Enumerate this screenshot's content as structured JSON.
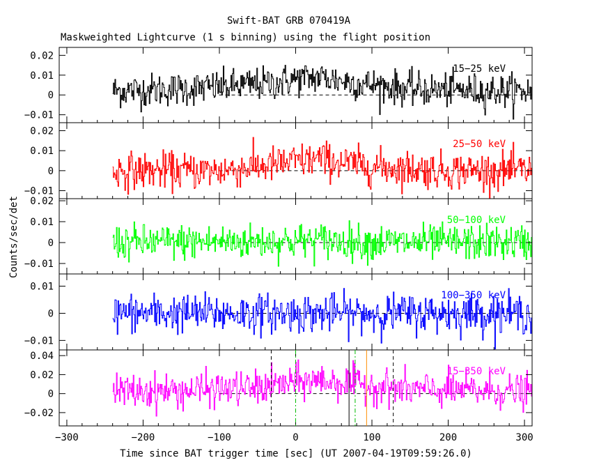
{
  "chart_data": {
    "type": "line",
    "title": "Swift-BAT GRB 070419A",
    "subtitle": "Maskweighted Lightcurve (1 s binning) using the flight position",
    "xlabel": "Time since BAT trigger time [sec] (UT 2007-04-19T09:59:26.0)",
    "ylabel": "Counts/sec/det",
    "xlim": [
      -310,
      310
    ],
    "xticks": [
      "−300",
      "−200",
      "−100",
      "0",
      "100",
      "200",
      "300"
    ],
    "data_start": -240,
    "data_end": 310,
    "panels": [
      {
        "band": "15−25 keV",
        "color": "#000000",
        "ylim": [
          -0.014,
          0.024
        ],
        "yticks": [
          {
            "v": 0.02,
            "t": "0.02"
          },
          {
            "v": 0.01,
            "t": "0.01"
          },
          {
            "v": 0,
            "t": "0"
          },
          {
            "v": -0.01,
            "t": "−0.01"
          }
        ],
        "noise": 0.0042,
        "series": [
          {
            "x": -240,
            "y": 0.002
          },
          {
            "x": -150,
            "y": 0.003
          },
          {
            "x": -100,
            "y": 0.004
          },
          {
            "x": -30,
            "y": 0.006
          },
          {
            "x": 0,
            "y": 0.008
          },
          {
            "x": 30,
            "y": 0.009
          },
          {
            "x": 80,
            "y": 0.006
          },
          {
            "x": 150,
            "y": 0.003
          },
          {
            "x": 250,
            "y": 0.002
          },
          {
            "x": 310,
            "y": 0.002
          }
        ]
      },
      {
        "band": "25−50 keV",
        "color": "#ff0000",
        "ylim": [
          -0.014,
          0.024
        ],
        "yticks": [
          {
            "v": 0.02,
            "t": "0.02"
          },
          {
            "v": 0.01,
            "t": "0.01"
          },
          {
            "v": 0,
            "t": "0"
          },
          {
            "v": -0.01,
            "t": "−0.01"
          }
        ],
        "noise": 0.0045,
        "series": [
          {
            "x": -240,
            "y": 0.0
          },
          {
            "x": -100,
            "y": 0.0
          },
          {
            "x": -30,
            "y": 0.003
          },
          {
            "x": 30,
            "y": 0.006
          },
          {
            "x": 60,
            "y": 0.004
          },
          {
            "x": 100,
            "y": 0.002
          },
          {
            "x": 200,
            "y": 0.0
          },
          {
            "x": 310,
            "y": 0.0
          }
        ]
      },
      {
        "band": "50−100 keV",
        "color": "#00ff00",
        "ylim": [
          -0.015,
          0.021
        ],
        "yticks": [
          {
            "v": 0.02,
            "t": "0.02"
          },
          {
            "v": 0.01,
            "t": "0.01"
          },
          {
            "v": 0,
            "t": "0"
          },
          {
            "v": -0.01,
            "t": "−0.01"
          }
        ],
        "noise": 0.0042,
        "series": [
          {
            "x": -240,
            "y": 0.0
          },
          {
            "x": -50,
            "y": 0.0005
          },
          {
            "x": 30,
            "y": 0.001
          },
          {
            "x": 100,
            "y": 0.0
          },
          {
            "x": 310,
            "y": 0.0
          }
        ]
      },
      {
        "band": "100−350 keV",
        "color": "#0000ff",
        "ylim": [
          -0.0135,
          0.0145
        ],
        "yticks": [
          {
            "v": 0.01,
            "t": "0.01"
          },
          {
            "v": 0,
            "t": "0"
          },
          {
            "v": -0.01,
            "t": "−0.01"
          }
        ],
        "noise": 0.0035,
        "series": [
          {
            "x": -240,
            "y": 0.0
          },
          {
            "x": 310,
            "y": 0.0
          }
        ]
      },
      {
        "band": "15−350 keV",
        "color": "#ff00ff",
        "ylim": [
          -0.034,
          0.046
        ],
        "yticks": [
          {
            "v": 0.04,
            "t": "0.04"
          },
          {
            "v": 0.02,
            "t": "0.02"
          },
          {
            "v": 0,
            "t": "0"
          },
          {
            "v": -0.02,
            "t": "−0.02"
          }
        ],
        "noise": 0.009,
        "series": [
          {
            "x": -240,
            "y": 0.002
          },
          {
            "x": -150,
            "y": 0.003
          },
          {
            "x": -50,
            "y": 0.006
          },
          {
            "x": 0,
            "y": 0.012
          },
          {
            "x": 30,
            "y": 0.014
          },
          {
            "x": 80,
            "y": 0.01
          },
          {
            "x": 150,
            "y": 0.004
          },
          {
            "x": 310,
            "y": 0.002
          }
        ]
      }
    ],
    "markers": [
      {
        "x": -32,
        "color": "#000000",
        "style": "dashed"
      },
      {
        "x": 0,
        "color": "#00bb00",
        "style": "dashdot"
      },
      {
        "x": 70,
        "color": "#000000",
        "style": "solid"
      },
      {
        "x": 78,
        "color": "#00bb00",
        "style": "dashdot"
      },
      {
        "x": 93,
        "color": "#ff8c00",
        "style": "solid"
      },
      {
        "x": 128,
        "color": "#000000",
        "style": "dashed"
      }
    ]
  }
}
